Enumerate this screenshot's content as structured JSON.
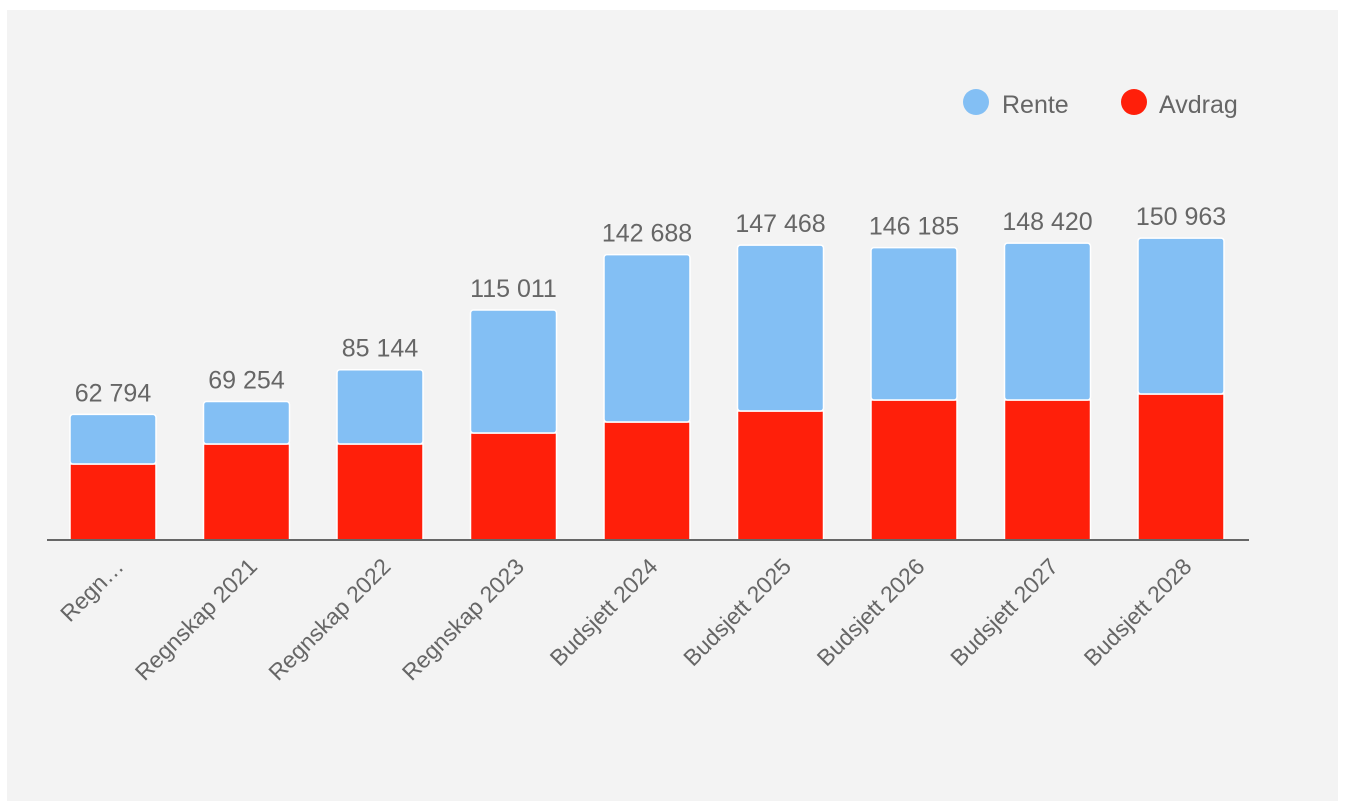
{
  "chart_data": {
    "type": "bar",
    "stacked": true,
    "categories": [
      "Regn…",
      "Regnskap 2021",
      "Regnskap 2022",
      "Regnskap 2023",
      "Budsjett 2024",
      "Budsjett 2025",
      "Budsjett 2026",
      "Budsjett 2027",
      "Budsjett 2028"
    ],
    "series": [
      {
        "name": "Avdrag",
        "color": "#ff1f0a",
        "values": [
          38000,
          48000,
          48000,
          53500,
          59000,
          64500,
          70000,
          70000,
          73000
        ]
      },
      {
        "name": "Rente",
        "color": "#83bff4",
        "values": [
          24794,
          21254,
          37144,
          61511,
          83688,
          82968,
          76185,
          78420,
          77963
        ]
      }
    ],
    "totals": [
      "62 794",
      "69 254",
      "85 144",
      "115 011",
      "142 688",
      "147 468",
      "146 185",
      "148 420",
      "150 963"
    ],
    "ylim": [
      0,
      180000
    ],
    "legend": {
      "position": "top-right",
      "items": [
        {
          "name": "Rente",
          "color": "#83bff4"
        },
        {
          "name": "Avdrag",
          "color": "#ff1f0a"
        }
      ]
    },
    "xlabel": "",
    "ylabel": "",
    "grid": false
  }
}
